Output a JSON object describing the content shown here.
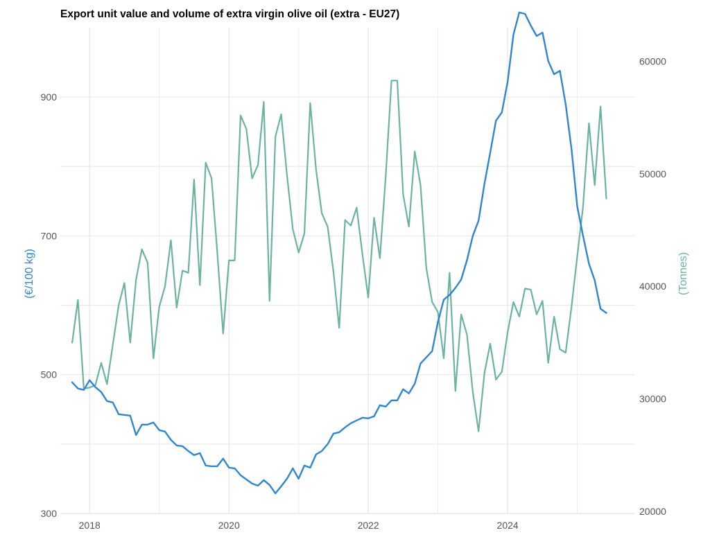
{
  "chart_data": {
    "type": "line",
    "title": "Export unit value and volume of extra virgin olive oil (extra - EU27)",
    "xlabel": "",
    "ylabel_left": "(€/100 kg)",
    "ylabel_right": "(Tonnes)",
    "xlim": [
      2017.58,
      2025.82
    ],
    "ylim_left": [
      300,
      1000
    ],
    "ylim_right": [
      19800,
      63000
    ],
    "x_ticks": [
      2018,
      2020,
      2022,
      2024
    ],
    "x_tick_labels": [
      "2018",
      "2020",
      "2022",
      "2024"
    ],
    "y_left_ticks": [
      300,
      500,
      700,
      900
    ],
    "y_left_tick_labels": [
      "300",
      "500",
      "700",
      "900"
    ],
    "y_left_grid": [
      300,
      400,
      500,
      600,
      700,
      800,
      900
    ],
    "y_right_ticks": [
      20000,
      30000,
      40000,
      50000,
      60000
    ],
    "y_right_tick_labels": [
      "20000",
      "30000",
      "40000",
      "50000",
      "60000"
    ],
    "grid": true,
    "x": [
      2017.75,
      2017.833,
      2017.917,
      2018.0,
      2018.083,
      2018.167,
      2018.25,
      2018.333,
      2018.417,
      2018.5,
      2018.583,
      2018.667,
      2018.75,
      2018.833,
      2018.917,
      2019.0,
      2019.083,
      2019.167,
      2019.25,
      2019.333,
      2019.417,
      2019.5,
      2019.583,
      2019.667,
      2019.75,
      2019.833,
      2019.917,
      2020.0,
      2020.083,
      2020.167,
      2020.25,
      2020.333,
      2020.417,
      2020.5,
      2020.583,
      2020.667,
      2020.75,
      2020.833,
      2020.917,
      2021.0,
      2021.083,
      2021.167,
      2021.25,
      2021.333,
      2021.417,
      2021.5,
      2021.583,
      2021.667,
      2021.75,
      2021.833,
      2021.917,
      2022.0,
      2022.083,
      2022.167,
      2022.25,
      2022.333,
      2022.417,
      2022.5,
      2022.583,
      2022.667,
      2022.75,
      2022.833,
      2022.917,
      2023.0,
      2023.083,
      2023.167,
      2023.25,
      2023.333,
      2023.417,
      2023.5,
      2023.583,
      2023.667,
      2023.75,
      2023.833,
      2023.917,
      2024.0,
      2024.083,
      2024.167,
      2024.25,
      2024.333,
      2024.417,
      2024.5,
      2024.583,
      2024.667,
      2024.75,
      2024.833,
      2024.917,
      2025.0,
      2025.083,
      2025.167,
      2025.25,
      2025.333,
      2025.417
    ],
    "series": [
      {
        "axis": "left",
        "color": "#2e86d1",
        "values": [
          489,
          480,
          478,
          492,
          482,
          475,
          462,
          460,
          443,
          442,
          441,
          413,
          428,
          428,
          431,
          420,
          418,
          406,
          398,
          397,
          390,
          384,
          387,
          369,
          368,
          368,
          379,
          366,
          365,
          355,
          349,
          343,
          340,
          348,
          341,
          329,
          339,
          350,
          365,
          350,
          369,
          366,
          385,
          390,
          400,
          415,
          417,
          424,
          430,
          434,
          438,
          437,
          440,
          456,
          454,
          463,
          463,
          479,
          473,
          487,
          516,
          525,
          534,
          576,
          608,
          615,
          625,
          637,
          665,
          700,
          722,
          775,
          820,
          866,
          878,
          922,
          990,
          1022,
          1020,
          1003,
          988,
          993,
          952,
          933,
          938,
          890,
          825,
          742,
          700,
          660,
          636,
          595,
          589
        ]
      },
      {
        "axis": "right",
        "color": "#6ab3a3",
        "values": [
          35000,
          38800,
          30900,
          31000,
          31200,
          33200,
          31300,
          34800,
          38300,
          40300,
          35000,
          40600,
          43300,
          42100,
          33600,
          38200,
          40000,
          44100,
          38100,
          41400,
          41200,
          49500,
          40100,
          51000,
          49600,
          43000,
          35800,
          42300,
          42300,
          55200,
          54000,
          49600,
          50800,
          56400,
          38700,
          53300,
          55300,
          49900,
          45100,
          43000,
          44700,
          56300,
          50400,
          46500,
          45300,
          41300,
          36300,
          45900,
          45400,
          47000,
          42800,
          39000,
          46100,
          42500,
          49800,
          58300,
          58300,
          48200,
          45300,
          52000,
          49000,
          41600,
          38600,
          37700,
          33600,
          41200,
          30700,
          37500,
          35700,
          30600,
          27100,
          32300,
          34900,
          31700,
          32400,
          35900,
          38600,
          37300,
          39800,
          39700,
          37500,
          38700,
          33200,
          37300,
          34400,
          34100,
          38200,
          42700,
          47100,
          54500,
          49000,
          56000,
          47800
        ]
      }
    ]
  }
}
